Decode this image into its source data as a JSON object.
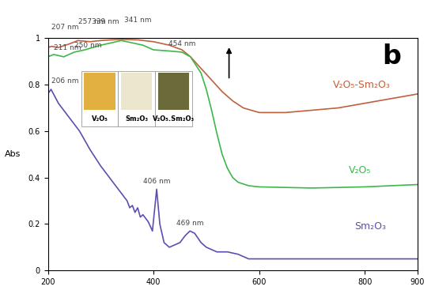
{
  "chart_data": {
    "type": "line",
    "panel_label": "b",
    "y_label": "Abs",
    "xlim": [
      200,
      900
    ],
    "xticks": [
      200,
      400,
      600,
      800,
      900
    ],
    "ylim": [
      0,
      1
    ],
    "yticks": [
      0,
      0.2,
      0.4,
      0.6,
      0.8,
      1
    ],
    "grid": false,
    "inset_labels": [
      "V₂O₅",
      "Sm₂O₃",
      "V₂O₅.Sm₂O₃"
    ],
    "series": [
      {
        "name": "V₂O₅-Sm₂O₃",
        "color": "#c0603f",
        "x": [
          200,
          207,
          220,
          240,
          257,
          280,
          300,
          320,
          341,
          370,
          400,
          430,
          454,
          470,
          490,
          510,
          530,
          550,
          570,
          600,
          650,
          700,
          750,
          800,
          850,
          900
        ],
        "values": [
          0.96,
          0.965,
          0.96,
          0.975,
          0.99,
          0.985,
          0.99,
          0.993,
          0.995,
          0.993,
          0.985,
          0.97,
          0.95,
          0.92,
          0.87,
          0.82,
          0.77,
          0.73,
          0.7,
          0.68,
          0.68,
          0.69,
          0.7,
          0.72,
          0.74,
          0.76
        ]
      },
      {
        "name": "V₂O₅",
        "color": "#3cb84a",
        "x": [
          200,
          211,
          230,
          250,
          270,
          300,
          320,
          339,
          360,
          380,
          400,
          430,
          454,
          470,
          490,
          500,
          510,
          520,
          530,
          540,
          550,
          560,
          580,
          600,
          700,
          800,
          900
        ],
        "values": [
          0.92,
          0.93,
          0.92,
          0.94,
          0.95,
          0.97,
          0.98,
          0.99,
          0.98,
          0.97,
          0.95,
          0.945,
          0.94,
          0.92,
          0.85,
          0.78,
          0.69,
          0.59,
          0.5,
          0.44,
          0.4,
          0.38,
          0.365,
          0.36,
          0.355,
          0.36,
          0.37
        ]
      },
      {
        "name": "Sm₂O₃",
        "color": "#5b4fb0",
        "x": [
          200,
          206,
          220,
          240,
          260,
          280,
          300,
          320,
          340,
          350,
          355,
          360,
          365,
          370,
          375,
          380,
          390,
          398,
          406,
          412,
          420,
          430,
          440,
          450,
          460,
          469,
          478,
          490,
          500,
          520,
          540,
          560,
          570,
          580,
          600,
          650,
          700,
          800,
          900
        ],
        "values": [
          0.76,
          0.78,
          0.72,
          0.66,
          0.6,
          0.52,
          0.45,
          0.39,
          0.33,
          0.3,
          0.27,
          0.28,
          0.25,
          0.27,
          0.23,
          0.24,
          0.21,
          0.17,
          0.35,
          0.2,
          0.12,
          0.1,
          0.11,
          0.12,
          0.15,
          0.17,
          0.16,
          0.12,
          0.1,
          0.08,
          0.08,
          0.07,
          0.06,
          0.05,
          0.05,
          0.05,
          0.05,
          0.05,
          0.05
        ]
      }
    ],
    "annotations": [
      {
        "text": "207 nm",
        "x": 207,
        "y": 0.965
      },
      {
        "text": "211 nm",
        "x": 211,
        "y": 0.93
      },
      {
        "text": "257 nm",
        "x": 257,
        "y": 0.99
      },
      {
        "text": "250 nm",
        "x": 250,
        "y": 0.94
      },
      {
        "text": "341 nm",
        "x": 341,
        "y": 0.995
      },
      {
        "text": "339 nm",
        "x": 339,
        "y": 0.99
      },
      {
        "text": "454 nm",
        "x": 454,
        "y": 0.94
      },
      {
        "text": "206 nm",
        "x": 206,
        "y": 0.78
      },
      {
        "text": "406 nm",
        "x": 406,
        "y": 0.35
      },
      {
        "text": "469 nm",
        "x": 469,
        "y": 0.17
      }
    ]
  }
}
